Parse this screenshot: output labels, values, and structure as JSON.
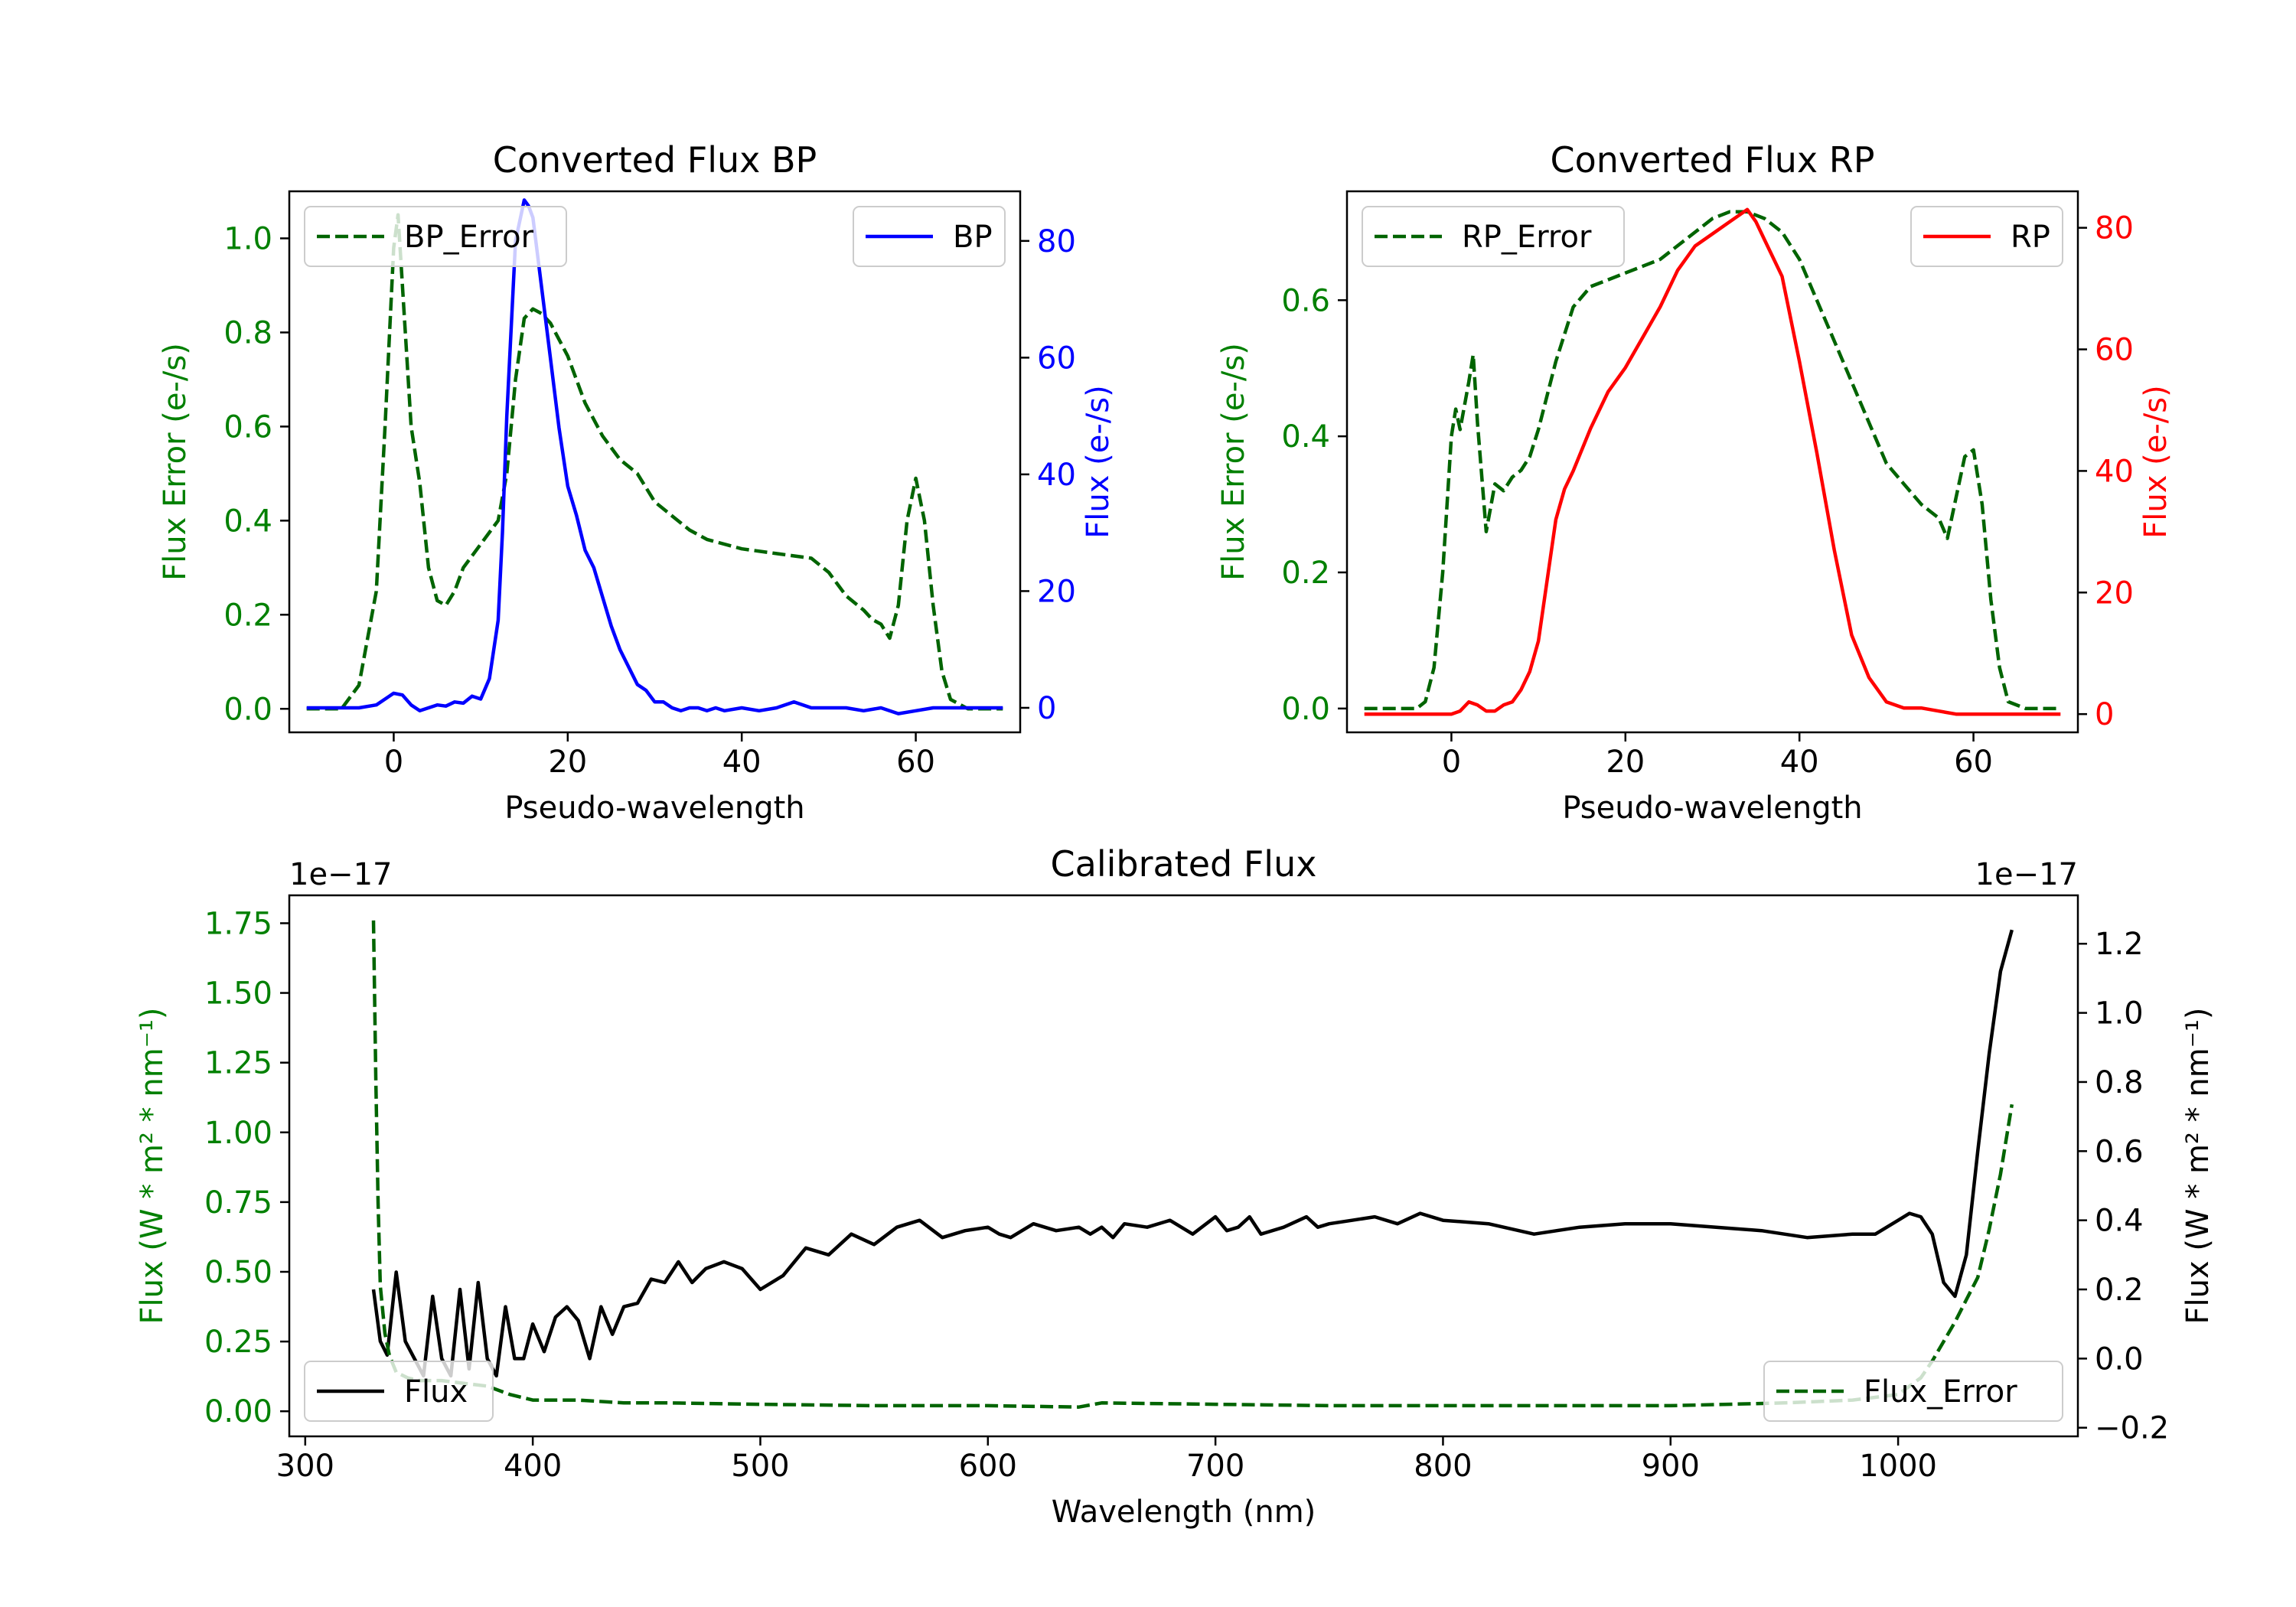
{
  "chart_data": [
    {
      "id": "bp",
      "type": "line",
      "title": "Converted Flux BP",
      "xlabel": "Pseudo-wavelength",
      "xlim": [
        -12,
        72
      ],
      "xticks": [
        0,
        20,
        40,
        60
      ],
      "left_axis": {
        "label": "Flux Error (e-/s)",
        "color": "#008000",
        "ylim": [
          -0.05,
          1.1
        ],
        "ticks": [
          0.0,
          0.2,
          0.4,
          0.6,
          0.8,
          1.0
        ],
        "tick_labels": [
          "0.0",
          "0.2",
          "0.4",
          "0.6",
          "0.8",
          "1.0"
        ]
      },
      "right_axis": {
        "label": "Flux (e-/s)",
        "color": "#0000ff",
        "ylim": [
          -4.2,
          88.5
        ],
        "ticks": [
          0,
          20,
          40,
          60,
          80
        ],
        "tick_labels": [
          "0",
          "20",
          "40",
          "60",
          "80"
        ]
      },
      "series": [
        {
          "name": "BP_Error",
          "axis": "left",
          "color": "#006400",
          "dash": true,
          "x": [
            -10,
            -6,
            -4,
            -2,
            -1,
            0,
            0.5,
            1,
            2,
            3,
            4,
            5,
            6,
            7,
            8,
            10,
            12,
            13,
            14,
            15,
            16,
            17,
            18,
            20,
            22,
            24,
            26,
            28,
            30,
            32,
            34,
            36,
            40,
            44,
            48,
            50,
            52,
            54,
            55,
            56,
            57,
            58,
            59,
            60,
            61,
            62,
            63,
            64,
            66,
            70
          ],
          "y": [
            0.0,
            0.0,
            0.05,
            0.25,
            0.6,
            0.98,
            1.05,
            0.9,
            0.6,
            0.48,
            0.3,
            0.23,
            0.22,
            0.25,
            0.3,
            0.35,
            0.4,
            0.5,
            0.7,
            0.83,
            0.85,
            0.84,
            0.82,
            0.75,
            0.65,
            0.58,
            0.53,
            0.5,
            0.44,
            0.41,
            0.38,
            0.36,
            0.34,
            0.33,
            0.32,
            0.29,
            0.24,
            0.21,
            0.19,
            0.18,
            0.15,
            0.22,
            0.4,
            0.49,
            0.4,
            0.22,
            0.08,
            0.02,
            0.0,
            0.0
          ]
        },
        {
          "name": "BP",
          "axis": "right",
          "color": "#0000ff",
          "dash": false,
          "x": [
            -10,
            -4,
            -2,
            0,
            1,
            2,
            3,
            4,
            5,
            6,
            7,
            8,
            9,
            10,
            11,
            12,
            12.5,
            13,
            14,
            15,
            15.5,
            16,
            17,
            18,
            19,
            20,
            21,
            22,
            23,
            24,
            25,
            26,
            27,
            28,
            29,
            30,
            31,
            32,
            33,
            34,
            35,
            36,
            37,
            38,
            40,
            42,
            44,
            46,
            48,
            50,
            52,
            54,
            56,
            58,
            60,
            62,
            64,
            66,
            70
          ],
          "y": [
            0,
            0,
            0.5,
            2.5,
            2.2,
            0.5,
            -0.5,
            0,
            0.5,
            0.3,
            1,
            0.8,
            2,
            1.5,
            5,
            15,
            30,
            50,
            80,
            87,
            86,
            84,
            72,
            60,
            48,
            38,
            33,
            27,
            24,
            19,
            14,
            10,
            7,
            4,
            3,
            1,
            1,
            0,
            -0.5,
            0,
            0,
            -0.5,
            0,
            -0.5,
            0,
            -0.5,
            0,
            1,
            0,
            0,
            0,
            -0.5,
            0,
            -1,
            -0.5,
            0,
            0,
            0,
            0
          ]
        }
      ],
      "legend": [
        {
          "label": "BP_Error",
          "position": "upper-left"
        },
        {
          "label": "BP",
          "position": "upper-right"
        }
      ]
    },
    {
      "id": "rp",
      "type": "line",
      "title": "Converted Flux RP",
      "xlabel": "Pseudo-wavelength",
      "xlim": [
        -12,
        72
      ],
      "xticks": [
        0,
        20,
        40,
        60
      ],
      "left_axis": {
        "label": "Flux Error (e-/s)",
        "color": "#008000",
        "ylim": [
          -0.035,
          0.76
        ],
        "ticks": [
          0.0,
          0.2,
          0.4,
          0.6
        ],
        "tick_labels": [
          "0.0",
          "0.2",
          "0.4",
          "0.6"
        ]
      },
      "right_axis": {
        "label": "Flux (e-/s)",
        "color": "#ff0000",
        "ylim": [
          -3,
          86
        ],
        "ticks": [
          0,
          20,
          40,
          60,
          80
        ],
        "tick_labels": [
          "0",
          "20",
          "40",
          "60",
          "80"
        ]
      },
      "series": [
        {
          "name": "RP_Error",
          "axis": "left",
          "color": "#006400",
          "dash": true,
          "x": [
            -10,
            -4,
            -3,
            -2,
            -1,
            0,
            0.5,
            1,
            2,
            2.5,
            3,
            4,
            5,
            6,
            7,
            8,
            9,
            10,
            12,
            14,
            16,
            18,
            20,
            24,
            26,
            28,
            30,
            32,
            34,
            36,
            38,
            40,
            42,
            44,
            46,
            48,
            50,
            52,
            54,
            55,
            56,
            57,
            58,
            59,
            60,
            61,
            62,
            63,
            64,
            66,
            70
          ],
          "y": [
            0.0,
            0.0,
            0.01,
            0.06,
            0.2,
            0.4,
            0.44,
            0.41,
            0.48,
            0.52,
            0.42,
            0.26,
            0.33,
            0.32,
            0.34,
            0.35,
            0.37,
            0.41,
            0.51,
            0.59,
            0.62,
            0.63,
            0.64,
            0.66,
            0.68,
            0.7,
            0.72,
            0.73,
            0.73,
            0.72,
            0.7,
            0.66,
            0.6,
            0.54,
            0.48,
            0.42,
            0.36,
            0.33,
            0.3,
            0.29,
            0.28,
            0.25,
            0.31,
            0.37,
            0.38,
            0.3,
            0.16,
            0.06,
            0.01,
            0.0,
            0.0
          ]
        },
        {
          "name": "RP",
          "axis": "right",
          "color": "#ff0000",
          "dash": false,
          "x": [
            -10,
            -4,
            -2,
            0,
            1,
            2,
            3,
            4,
            5,
            6,
            7,
            8,
            9,
            10,
            11,
            12,
            13,
            14,
            16,
            18,
            20,
            22,
            24,
            26,
            28,
            30,
            32,
            34,
            35,
            36,
            38,
            40,
            42,
            44,
            46,
            48,
            50,
            52,
            54,
            56,
            58,
            60,
            62,
            66,
            70
          ],
          "y": [
            0,
            0,
            0,
            0,
            0.5,
            2,
            1.5,
            0.5,
            0.5,
            1.5,
            2,
            4,
            7,
            12,
            22,
            32,
            37,
            40,
            47,
            53,
            57,
            62,
            67,
            73,
            77,
            79,
            81,
            83,
            81,
            78,
            72,
            58,
            43,
            27,
            13,
            6,
            2,
            1,
            1,
            0.5,
            0,
            0,
            0,
            0,
            0
          ]
        }
      ],
      "legend": [
        {
          "label": "RP_Error",
          "position": "upper-left"
        },
        {
          "label": "RP",
          "position": "upper-right"
        }
      ]
    },
    {
      "id": "cal",
      "type": "line",
      "title": "Calibrated Flux",
      "xlabel": "Wavelength (nm)",
      "xlim": [
        293,
        1079
      ],
      "xticks": [
        300,
        400,
        500,
        600,
        700,
        800,
        900,
        1000
      ],
      "left_axis": {
        "label": "Flux (W * m² * nm⁻¹)",
        "color": "#008000",
        "offset_text": "1e−17",
        "ylim": [
          -0.09,
          1.85
        ],
        "ticks": [
          0.0,
          0.25,
          0.5,
          0.75,
          1.0,
          1.25,
          1.5,
          1.75
        ],
        "tick_labels": [
          "0.00",
          "0.25",
          "0.50",
          "0.75",
          "1.00",
          "1.25",
          "1.50",
          "1.75"
        ]
      },
      "right_axis": {
        "label": "Flux (W * m² * nm⁻¹)",
        "color": "#000000",
        "offset_text": "1e−17",
        "ylim": [
          -0.225,
          1.34
        ],
        "ticks": [
          -0.2,
          0.0,
          0.2,
          0.4,
          0.6,
          0.8,
          1.0,
          1.2
        ],
        "tick_labels": [
          "−0.2",
          "0.0",
          "0.2",
          "0.4",
          "0.6",
          "0.8",
          "1.0",
          "1.2"
        ]
      },
      "series": [
        {
          "name": "Flux",
          "axis": "right",
          "color": "#000000",
          "dash": false,
          "x": [
            330,
            333,
            336,
            340,
            344,
            348,
            352,
            356,
            360,
            364,
            368,
            372,
            376,
            380,
            384,
            388,
            392,
            396,
            400,
            405,
            410,
            415,
            420,
            425,
            430,
            435,
            440,
            446,
            452,
            458,
            464,
            470,
            476,
            484,
            492,
            500,
            510,
            520,
            530,
            540,
            550,
            560,
            570,
            580,
            590,
            600,
            605,
            610,
            620,
            630,
            640,
            645,
            650,
            655,
            660,
            670,
            680,
            690,
            700,
            705,
            710,
            715,
            720,
            730,
            740,
            745,
            750,
            760,
            770,
            780,
            790,
            800,
            820,
            840,
            860,
            880,
            900,
            920,
            940,
            960,
            980,
            990,
            1000,
            1005,
            1010,
            1015,
            1020,
            1025,
            1030,
            1035,
            1040,
            1045,
            1050
          ],
          "y": [
            0.2,
            0.05,
            0.01,
            0.25,
            0.05,
            0.0,
            -0.05,
            0.18,
            0.0,
            -0.05,
            0.2,
            -0.03,
            0.22,
            0.0,
            -0.05,
            0.15,
            0.0,
            0.0,
            0.1,
            0.02,
            0.12,
            0.15,
            0.11,
            0.0,
            0.15,
            0.07,
            0.15,
            0.16,
            0.23,
            0.22,
            0.28,
            0.22,
            0.26,
            0.28,
            0.26,
            0.2,
            0.24,
            0.32,
            0.3,
            0.36,
            0.33,
            0.38,
            0.4,
            0.35,
            0.37,
            0.38,
            0.36,
            0.35,
            0.39,
            0.37,
            0.38,
            0.36,
            0.38,
            0.35,
            0.39,
            0.38,
            0.4,
            0.36,
            0.41,
            0.37,
            0.38,
            0.41,
            0.36,
            0.38,
            0.41,
            0.38,
            0.39,
            0.4,
            0.41,
            0.39,
            0.42,
            0.4,
            0.39,
            0.36,
            0.38,
            0.39,
            0.39,
            0.38,
            0.37,
            0.35,
            0.36,
            0.36,
            0.4,
            0.42,
            0.41,
            0.36,
            0.22,
            0.18,
            0.3,
            0.6,
            0.88,
            1.12,
            1.24
          ]
        },
        {
          "name": "Flux_Error",
          "axis": "left",
          "color": "#006400",
          "dash": true,
          "x": [
            330,
            331,
            332,
            333,
            335,
            337,
            340,
            345,
            350,
            360,
            370,
            380,
            390,
            400,
            420,
            440,
            460,
            500,
            550,
            600,
            640,
            650,
            700,
            750,
            800,
            850,
            900,
            950,
            980,
            1000,
            1010,
            1015,
            1020,
            1025,
            1030,
            1035,
            1040,
            1045,
            1050
          ],
          "y": [
            1.76,
            1.2,
            0.75,
            0.45,
            0.28,
            0.2,
            0.14,
            0.12,
            0.11,
            0.11,
            0.1,
            0.09,
            0.06,
            0.04,
            0.04,
            0.03,
            0.03,
            0.025,
            0.02,
            0.02,
            0.015,
            0.03,
            0.025,
            0.02,
            0.02,
            0.02,
            0.02,
            0.03,
            0.04,
            0.06,
            0.12,
            0.18,
            0.25,
            0.32,
            0.4,
            0.48,
            0.65,
            0.85,
            1.1
          ]
        }
      ],
      "legend": [
        {
          "label": "Flux",
          "position": "lower-left"
        },
        {
          "label": "Flux_Error",
          "position": "lower-right"
        }
      ]
    }
  ]
}
